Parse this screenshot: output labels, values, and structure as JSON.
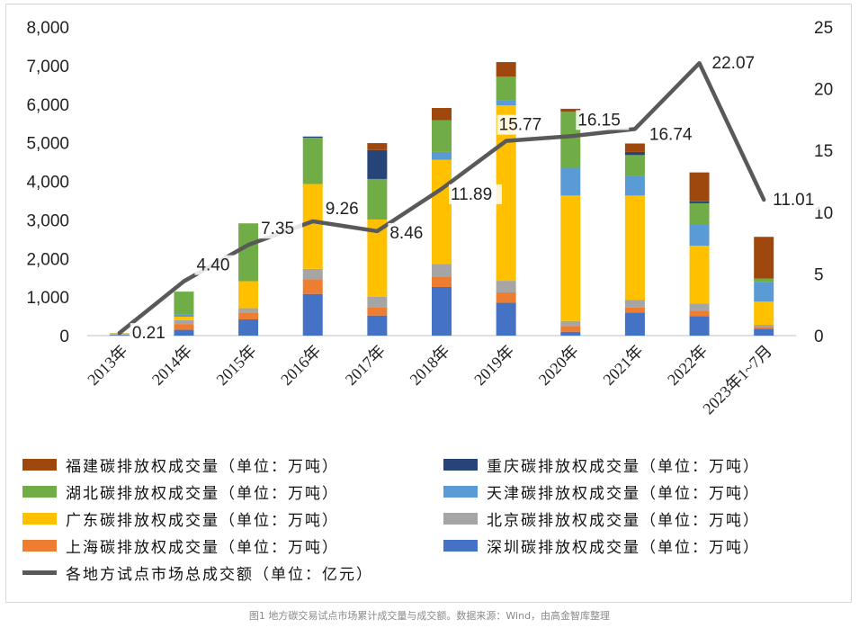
{
  "chart_data": {
    "type": "bar+line",
    "stacked": true,
    "categories": [
      "2013年",
      "2014年",
      "2015年",
      "2016年",
      "2017年",
      "2018年",
      "2019年",
      "2020年",
      "2021年",
      "2022年",
      "2023年1~7月"
    ],
    "y_left": {
      "min": 0,
      "max": 8000,
      "ticks": [
        "0",
        "1,000",
        "2,000",
        "3,000",
        "4,000",
        "5,000",
        "6,000",
        "7,000",
        "8,000"
      ]
    },
    "y_right": {
      "min": 0,
      "max": 25,
      "ticks": [
        "0",
        "5",
        "10",
        "15",
        "20",
        "25"
      ]
    },
    "series": [
      {
        "name": "深圳碳排放权成交量（单位：万吨）",
        "color": "#4472C4",
        "values": [
          20,
          150,
          420,
          1080,
          520,
          1260,
          850,
          100,
          600,
          500,
          180
        ]
      },
      {
        "name": "上海碳排放权成交量（单位：万吨）",
        "color": "#ED7D31",
        "values": [
          10,
          150,
          180,
          380,
          220,
          270,
          270,
          150,
          130,
          150,
          40
        ]
      },
      {
        "name": "北京碳排放权成交量（单位：万吨）",
        "color": "#A5A5A5",
        "values": [
          10,
          100,
          110,
          270,
          270,
          330,
          300,
          130,
          200,
          180,
          60
        ]
      },
      {
        "name": "广东碳排放权成交量（单位：万吨）",
        "color": "#FFC000",
        "values": [
          20,
          90,
          700,
          2200,
          2000,
          2700,
          4550,
          3250,
          2700,
          1500,
          600
        ]
      },
      {
        "name": "天津碳排放权成交量（单位：万吨）",
        "color": "#5B9BD5",
        "values": [
          5,
          50,
          0,
          0,
          0,
          200,
          120,
          720,
          500,
          550,
          500
        ]
      },
      {
        "name": "湖北碳排放权成交量（单位：万吨）",
        "color": "#70AD47",
        "values": [
          0,
          600,
          1500,
          1200,
          1050,
          820,
          620,
          1450,
          550,
          550,
          100
        ]
      },
      {
        "name": "重庆碳排放权成交量（单位：万吨）",
        "color": "#264478",
        "values": [
          0,
          0,
          0,
          30,
          750,
          0,
          0,
          0,
          80,
          50,
          0
        ]
      },
      {
        "name": "福建碳排放权成交量（单位：万吨）",
        "color": "#9E480E",
        "values": [
          0,
          0,
          0,
          0,
          180,
          320,
          380,
          80,
          220,
          750,
          1080
        ]
      }
    ],
    "line": {
      "name": "各地方试点市场总成交额（单位：亿元）",
      "color": "#595959",
      "values": [
        0.21,
        4.4,
        7.35,
        9.26,
        8.46,
        11.89,
        15.77,
        16.15,
        16.74,
        22.07,
        11.01
      ],
      "labels": [
        "0.21",
        "4.40",
        "7.35",
        "9.26",
        "8.46",
        "11.89",
        "15.77",
        "16.15",
        "16.74",
        "22.07",
        "11.01"
      ]
    },
    "title": "",
    "xlabel": "",
    "ylabel": ""
  },
  "legend": [
    {
      "label": "福建碳排放权成交量（单位：万吨）",
      "color": "#9E480E",
      "kind": "bar"
    },
    {
      "label": "重庆碳排放权成交量（单位：万吨）",
      "color": "#264478",
      "kind": "bar"
    },
    {
      "label": "湖北碳排放权成交量（单位：万吨）",
      "color": "#70AD47",
      "kind": "bar"
    },
    {
      "label": "天津碳排放权成交量（单位：万吨）",
      "color": "#5B9BD5",
      "kind": "bar"
    },
    {
      "label": "广东碳排放权成交量（单位：万吨）",
      "color": "#FFC000",
      "kind": "bar"
    },
    {
      "label": "北京碳排放权成交量（单位：万吨）",
      "color": "#A5A5A5",
      "kind": "bar"
    },
    {
      "label": "上海碳排放权成交量（单位：万吨）",
      "color": "#ED7D31",
      "kind": "bar"
    },
    {
      "label": "深圳碳排放权成交量（单位：万吨）",
      "color": "#4472C4",
      "kind": "bar"
    },
    {
      "label": "各地方试点市场总成交额（单位：亿元）",
      "color": "#595959",
      "kind": "line"
    }
  ],
  "caption": "图1 地方碳交易试点市场累计成交量与成交额。数据来源：Wind，由高金智库整理"
}
